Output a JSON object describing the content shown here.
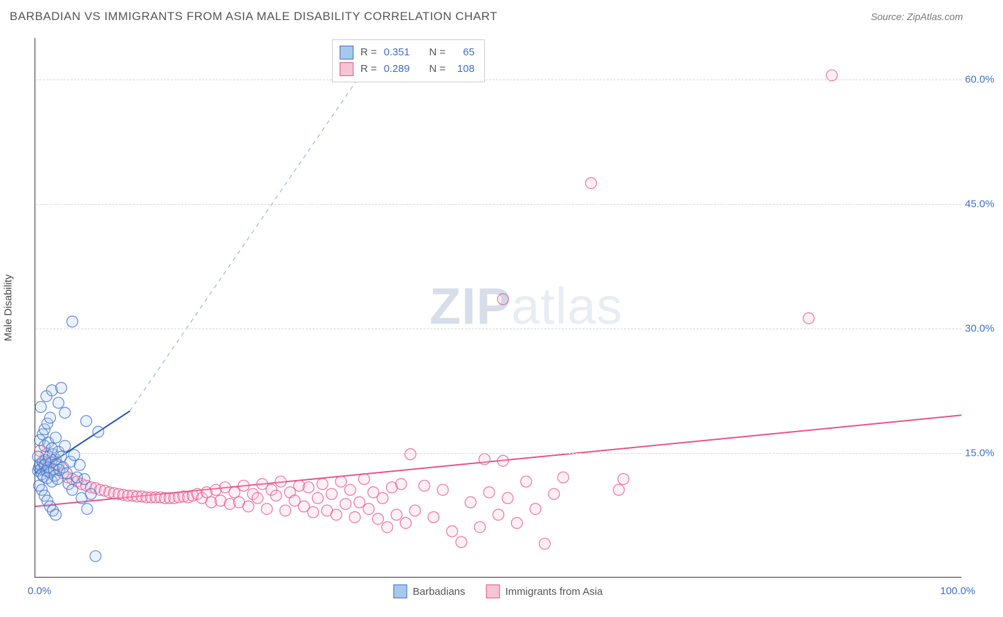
{
  "header": {
    "title": "BARBADIAN VS IMMIGRANTS FROM ASIA MALE DISABILITY CORRELATION CHART",
    "source": "Source: ZipAtlas.com"
  },
  "watermark": {
    "zip": "ZIP",
    "atlas": "atlas"
  },
  "chart": {
    "type": "scatter",
    "y_title": "Male Disability",
    "xlim": [
      0,
      100
    ],
    "ylim": [
      0,
      65
    ],
    "x_ticks": [
      {
        "v": 0,
        "label": "0.0%"
      },
      {
        "v": 100,
        "label": "100.0%"
      }
    ],
    "y_ticks": [
      {
        "v": 15,
        "label": "15.0%"
      },
      {
        "v": 30,
        "label": "30.0%"
      },
      {
        "v": 45,
        "label": "45.0%"
      },
      {
        "v": 60,
        "label": "60.0%"
      }
    ],
    "background_color": "#ffffff",
    "grid_color": "#d5d5d5",
    "marker_radius": 8,
    "marker_fill_opacity": 0.25,
    "marker_stroke_opacity": 0.8,
    "marker_stroke_width": 1.2,
    "series": [
      {
        "name": "Barbadians",
        "color_fill": "#a6c8ec",
        "color_stroke": "#3f6fc9",
        "r_value": "0.351",
        "n_value": "65",
        "trend": {
          "x1": 0,
          "y1": 12.5,
          "x2": 10.2,
          "y2": 20.0,
          "extend_x": 36,
          "extend_y": 62,
          "line_color": "#1f4fb8",
          "line_width": 2,
          "dash_color": "#9bb5d8",
          "dash_width": 1.2
        },
        "points": [
          [
            0.3,
            12.8
          ],
          [
            0.4,
            13.2
          ],
          [
            0.5,
            13.6
          ],
          [
            0.6,
            13.0
          ],
          [
            0.7,
            12.4
          ],
          [
            0.8,
            13.9
          ],
          [
            0.9,
            12.1
          ],
          [
            1.0,
            13.5
          ],
          [
            1.1,
            14.1
          ],
          [
            1.2,
            12.8
          ],
          [
            1.3,
            11.9
          ],
          [
            1.4,
            13.2
          ],
          [
            1.5,
            14.5
          ],
          [
            1.6,
            12.6
          ],
          [
            1.7,
            13.8
          ],
          [
            1.8,
            11.5
          ],
          [
            1.9,
            14.8
          ],
          [
            2.0,
            13.0
          ],
          [
            2.1,
            12.2
          ],
          [
            2.2,
            14.2
          ],
          [
            2.3,
            13.6
          ],
          [
            2.4,
            11.8
          ],
          [
            2.5,
            15.1
          ],
          [
            2.6,
            12.9
          ],
          [
            2.8,
            14.5
          ],
          [
            3.0,
            13.2
          ],
          [
            3.2,
            15.8
          ],
          [
            3.4,
            12.5
          ],
          [
            3.6,
            11.2
          ],
          [
            3.8,
            13.9
          ],
          [
            4.0,
            10.5
          ],
          [
            4.2,
            14.7
          ],
          [
            4.5,
            12.0
          ],
          [
            4.8,
            13.5
          ],
          [
            5.0,
            9.5
          ],
          [
            5.3,
            11.8
          ],
          [
            5.6,
            8.2
          ],
          [
            6.0,
            10.0
          ],
          [
            0.5,
            16.5
          ],
          [
            0.8,
            17.2
          ],
          [
            1.0,
            17.8
          ],
          [
            1.3,
            18.5
          ],
          [
            1.6,
            19.2
          ],
          [
            1.0,
            15.8
          ],
          [
            1.4,
            16.2
          ],
          [
            1.8,
            15.5
          ],
          [
            2.2,
            16.8
          ],
          [
            0.4,
            11.0
          ],
          [
            0.7,
            10.5
          ],
          [
            1.0,
            9.8
          ],
          [
            1.3,
            9.2
          ],
          [
            1.6,
            8.5
          ],
          [
            1.9,
            8.0
          ],
          [
            2.2,
            7.5
          ],
          [
            0.6,
            20.5
          ],
          [
            1.2,
            21.8
          ],
          [
            1.8,
            22.5
          ],
          [
            2.5,
            21.0
          ],
          [
            3.2,
            19.8
          ],
          [
            5.5,
            18.8
          ],
          [
            6.8,
            17.5
          ],
          [
            2.8,
            22.8
          ],
          [
            4.0,
            30.8
          ],
          [
            6.5,
            2.5
          ],
          [
            0.3,
            14.5
          ]
        ]
      },
      {
        "name": "Immigrants from Asia",
        "color_fill": "#f5c5d5",
        "color_stroke": "#e8518c",
        "r_value": "0.289",
        "n_value": "108",
        "trend": {
          "x1": 0,
          "y1": 8.5,
          "x2": 100,
          "y2": 19.5,
          "line_color": "#e8518c",
          "line_width": 2
        },
        "points": [
          [
            0.5,
            13.5
          ],
          [
            1.0,
            13.2
          ],
          [
            1.5,
            14.0
          ],
          [
            2.0,
            12.8
          ],
          [
            2.5,
            13.5
          ],
          [
            3.0,
            12.5
          ],
          [
            3.5,
            12.0
          ],
          [
            4.0,
            11.8
          ],
          [
            4.5,
            11.5
          ],
          [
            5.0,
            11.2
          ],
          [
            5.5,
            11.0
          ],
          [
            6.0,
            10.8
          ],
          [
            6.5,
            10.7
          ],
          [
            7.0,
            10.5
          ],
          [
            7.5,
            10.4
          ],
          [
            8.0,
            10.2
          ],
          [
            8.5,
            10.1
          ],
          [
            9.0,
            10.0
          ],
          [
            9.5,
            9.9
          ],
          [
            10.0,
            9.8
          ],
          [
            10.5,
            9.8
          ],
          [
            11.0,
            9.7
          ],
          [
            11.5,
            9.7
          ],
          [
            12.0,
            9.6
          ],
          [
            12.5,
            9.6
          ],
          [
            13.0,
            9.6
          ],
          [
            13.5,
            9.6
          ],
          [
            14.0,
            9.5
          ],
          [
            14.5,
            9.5
          ],
          [
            15.0,
            9.5
          ],
          [
            15.5,
            9.6
          ],
          [
            16.0,
            9.7
          ],
          [
            16.5,
            9.6
          ],
          [
            17.0,
            9.8
          ],
          [
            17.5,
            10.0
          ],
          [
            18.0,
            9.5
          ],
          [
            18.5,
            10.2
          ],
          [
            19.0,
            9.0
          ],
          [
            19.5,
            10.5
          ],
          [
            20.0,
            9.2
          ],
          [
            20.5,
            10.8
          ],
          [
            21.0,
            8.8
          ],
          [
            21.5,
            10.2
          ],
          [
            22.0,
            9.0
          ],
          [
            22.5,
            11.0
          ],
          [
            23.0,
            8.5
          ],
          [
            23.5,
            10.0
          ],
          [
            24.0,
            9.5
          ],
          [
            24.5,
            11.2
          ],
          [
            25.0,
            8.2
          ],
          [
            25.5,
            10.5
          ],
          [
            26.0,
            9.8
          ],
          [
            26.5,
            11.5
          ],
          [
            27.0,
            8.0
          ],
          [
            27.5,
            10.2
          ],
          [
            28.0,
            9.2
          ],
          [
            28.5,
            11.0
          ],
          [
            29.0,
            8.5
          ],
          [
            29.5,
            10.8
          ],
          [
            30.0,
            7.8
          ],
          [
            30.5,
            9.5
          ],
          [
            31.0,
            11.2
          ],
          [
            31.5,
            8.0
          ],
          [
            32.0,
            10.0
          ],
          [
            32.5,
            7.5
          ],
          [
            33.0,
            11.5
          ],
          [
            33.5,
            8.8
          ],
          [
            34.0,
            10.5
          ],
          [
            34.5,
            7.2
          ],
          [
            35.0,
            9.0
          ],
          [
            35.5,
            11.8
          ],
          [
            36.0,
            8.2
          ],
          [
            36.5,
            10.2
          ],
          [
            37.0,
            7.0
          ],
          [
            37.5,
            9.5
          ],
          [
            38.0,
            6.0
          ],
          [
            38.5,
            10.8
          ],
          [
            39.0,
            7.5
          ],
          [
            39.5,
            11.2
          ],
          [
            40.0,
            6.5
          ],
          [
            40.5,
            14.8
          ],
          [
            41.0,
            8.0
          ],
          [
            42.0,
            11.0
          ],
          [
            43.0,
            7.2
          ],
          [
            44.0,
            10.5
          ],
          [
            45.0,
            5.5
          ],
          [
            46.0,
            4.2
          ],
          [
            47.0,
            9.0
          ],
          [
            48.0,
            6.0
          ],
          [
            48.5,
            14.2
          ],
          [
            49.0,
            10.2
          ],
          [
            50.0,
            7.5
          ],
          [
            50.5,
            14.0
          ],
          [
            51.0,
            9.5
          ],
          [
            52.0,
            6.5
          ],
          [
            53.0,
            11.5
          ],
          [
            54.0,
            8.2
          ],
          [
            55.0,
            4.0
          ],
          [
            56.0,
            10.0
          ],
          [
            57.0,
            12.0
          ],
          [
            63.0,
            10.5
          ],
          [
            63.5,
            11.8
          ],
          [
            50.5,
            33.5
          ],
          [
            60.0,
            47.5
          ],
          [
            83.5,
            31.2
          ],
          [
            86.0,
            60.5
          ],
          [
            0.5,
            15.2
          ],
          [
            1.2,
            14.8
          ]
        ]
      }
    ],
    "legend_pos": "bottom"
  },
  "stats_legend": {
    "r_label": "R =",
    "n_label": "N ="
  }
}
